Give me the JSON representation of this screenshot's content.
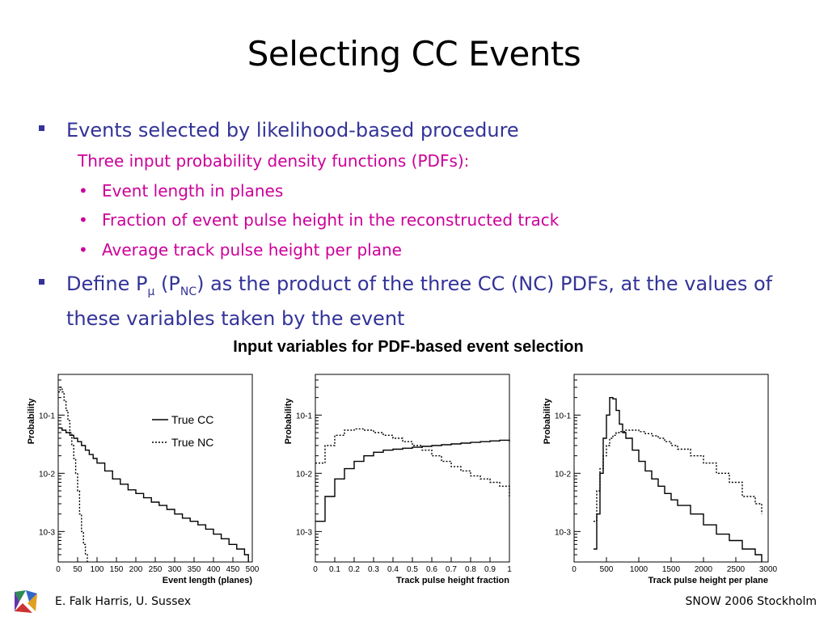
{
  "slide": {
    "title": "Selecting CC Events",
    "bullet1": "Events selected by likelihood-based procedure",
    "sub_intro": "Three input probability density functions (PDFs):",
    "sub_items": [
      "Event length in planes",
      "Fraction of event pulse height in the reconstructed track",
      "Average track pulse height per plane"
    ],
    "bullet2_a": "Define P",
    "bullet2_sub1": "μ",
    "bullet2_b": " (P",
    "bullet2_sub2": "NC",
    "bullet2_c": ") as the product of the three CC (NC) PDFs, at the values of these variables taken by the event",
    "bullet_mark": "▪",
    "dot_mark": "•",
    "figure_title": "Input variables for PDF-based event selection"
  },
  "footer": {
    "left": "E. Falk Harris, U. Sussex",
    "right": "SNOW 2006 Stockholm"
  },
  "colors": {
    "bullet_blue": "#333399",
    "sub_magenta": "#cc0099"
  },
  "chart_data": [
    {
      "type": "line",
      "xlabel": "Event length (planes)",
      "ylabel": "Probability",
      "xlim": [
        0,
        500
      ],
      "ylim": [
        0.0003,
        0.5
      ],
      "yscale": "log",
      "x_ticks": [
        "0",
        "50",
        "100",
        "150",
        "200",
        "250",
        "300",
        "350",
        "400",
        "450",
        "500"
      ],
      "y_ticks": [
        "10-1",
        "10-2",
        "10-3"
      ],
      "legend": [
        "True CC",
        "True NC"
      ],
      "series": [
        {
          "name": "True CC",
          "x": [
            0,
            10,
            20,
            30,
            40,
            50,
            60,
            70,
            80,
            90,
            100,
            120,
            140,
            160,
            180,
            200,
            220,
            240,
            260,
            280,
            300,
            320,
            340,
            360,
            380,
            400,
            420,
            440,
            460,
            480,
            490
          ],
          "y": [
            0.06,
            0.055,
            0.05,
            0.045,
            0.04,
            0.035,
            0.03,
            0.025,
            0.021,
            0.018,
            0.015,
            0.011,
            0.008,
            0.0065,
            0.0052,
            0.0045,
            0.0038,
            0.0032,
            0.0028,
            0.0024,
            0.002,
            0.0017,
            0.0015,
            0.0013,
            0.0011,
            0.0009,
            0.00075,
            0.0006,
            0.0005,
            0.0004,
            0.0003
          ]
        },
        {
          "name": "True NC",
          "x": [
            0,
            5,
            10,
            15,
            20,
            25,
            30,
            35,
            40,
            45,
            50,
            55,
            60,
            65,
            70,
            75
          ],
          "y": [
            0.25,
            0.3,
            0.25,
            0.18,
            0.12,
            0.08,
            0.05,
            0.03,
            0.018,
            0.01,
            0.005,
            0.002,
            0.001,
            0.0006,
            0.0004,
            0.0003
          ]
        }
      ]
    },
    {
      "type": "line",
      "xlabel": "Track pulse height fraction",
      "ylabel": "Probability",
      "xlim": [
        0,
        1
      ],
      "ylim": [
        0.0003,
        0.5
      ],
      "yscale": "log",
      "x_ticks": [
        "0",
        "0.1",
        "0.2",
        "0.3",
        "0.4",
        "0.5",
        "0.6",
        "0.7",
        "0.8",
        "0.9",
        "1"
      ],
      "y_ticks": [
        "10-1",
        "10-2",
        "10-3"
      ],
      "series": [
        {
          "name": "True CC",
          "x": [
            0.0,
            0.05,
            0.1,
            0.15,
            0.2,
            0.25,
            0.3,
            0.35,
            0.4,
            0.45,
            0.5,
            0.55,
            0.6,
            0.65,
            0.7,
            0.75,
            0.8,
            0.85,
            0.9,
            0.95,
            1.0
          ],
          "y": [
            0.0015,
            0.004,
            0.008,
            0.012,
            0.016,
            0.02,
            0.023,
            0.025,
            0.026,
            0.027,
            0.028,
            0.029,
            0.03,
            0.031,
            0.032,
            0.033,
            0.034,
            0.035,
            0.036,
            0.037,
            0.035
          ]
        },
        {
          "name": "True NC",
          "x": [
            0.0,
            0.05,
            0.1,
            0.15,
            0.2,
            0.25,
            0.3,
            0.35,
            0.4,
            0.45,
            0.5,
            0.55,
            0.6,
            0.65,
            0.7,
            0.75,
            0.8,
            0.85,
            0.9,
            0.95,
            1.0
          ],
          "y": [
            0.015,
            0.03,
            0.045,
            0.055,
            0.058,
            0.055,
            0.05,
            0.045,
            0.04,
            0.035,
            0.03,
            0.025,
            0.02,
            0.016,
            0.013,
            0.011,
            0.009,
            0.008,
            0.007,
            0.006,
            0.004
          ]
        }
      ]
    },
    {
      "type": "line",
      "xlabel": "Track pulse height per plane",
      "ylabel": "Probability",
      "xlim": [
        0,
        3000
      ],
      "ylim": [
        0.0003,
        0.5
      ],
      "yscale": "log",
      "x_ticks": [
        "0",
        "500",
        "1000",
        "1500",
        "2000",
        "2500",
        "3000"
      ],
      "y_ticks": [
        "10-1",
        "10-2",
        "10-3"
      ],
      "series": [
        {
          "name": "True CC",
          "x": [
            300,
            350,
            400,
            450,
            500,
            550,
            600,
            650,
            700,
            750,
            800,
            900,
            1000,
            1100,
            1200,
            1300,
            1400,
            1500,
            1600,
            1800,
            2000,
            2200,
            2400,
            2600,
            2800,
            2900
          ],
          "y": [
            0.0005,
            0.002,
            0.01,
            0.04,
            0.1,
            0.2,
            0.19,
            0.12,
            0.07,
            0.05,
            0.04,
            0.025,
            0.016,
            0.011,
            0.008,
            0.006,
            0.0045,
            0.0035,
            0.0028,
            0.002,
            0.0013,
            0.0009,
            0.0007,
            0.0005,
            0.0004,
            0.0003
          ]
        },
        {
          "name": "True NC",
          "x": [
            300,
            350,
            400,
            450,
            500,
            550,
            600,
            650,
            700,
            800,
            900,
            1000,
            1100,
            1200,
            1300,
            1400,
            1500,
            1600,
            1800,
            2000,
            2200,
            2400,
            2600,
            2800,
            2900
          ],
          "y": [
            0.0015,
            0.005,
            0.012,
            0.02,
            0.03,
            0.04,
            0.045,
            0.05,
            0.052,
            0.055,
            0.055,
            0.052,
            0.048,
            0.044,
            0.04,
            0.035,
            0.03,
            0.026,
            0.02,
            0.015,
            0.01,
            0.007,
            0.004,
            0.003,
            0.002
          ]
        }
      ]
    }
  ]
}
